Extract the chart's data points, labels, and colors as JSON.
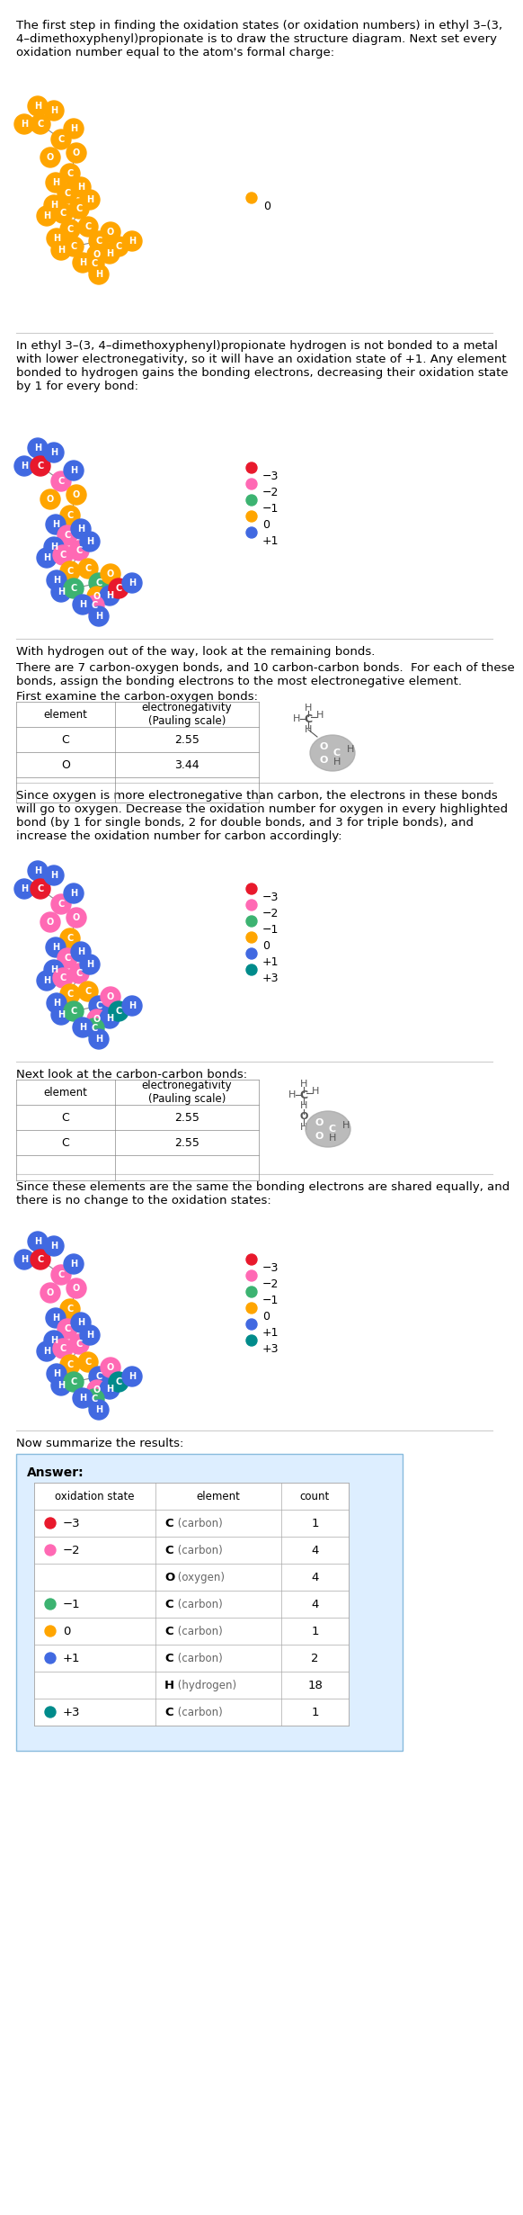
{
  "bg_color": "#ffffff",
  "text_color": "#000000",
  "orange": "#FFA500",
  "red": "#E8192C",
  "pink": "#FF69B4",
  "green": "#3CB371",
  "blue": "#4169E1",
  "teal": "#008B8B",
  "gray": "#888888",
  "section1_text": "The first step in finding the oxidation states (or oxidation numbers) in ethyl 3–(3,\n4–dimethoxyphenyl)propionate is to draw the structure diagram. Next set every\noxidation number equal to the atom's formal charge:",
  "section2_text": "In ethyl 3–(3, 4–dimethoxyphenyl)propionate hydrogen is not bonded to a metal\nwith lower electronegativity, so it will have an oxidation state of +1. Any element\nbonded to hydrogen gains the bonding electrons, decreasing their oxidation state\nby 1 for every bond:",
  "section3_text1": "With hydrogen out of the way, look at the remaining bonds.",
  "section3_text2": "There are 7 carbon-oxygen bonds, and 10 carbon-carbon bonds.  For each of these\nbonds, assign the bonding electrons to the most electronegative element.",
  "section3_text3": "First examine the carbon-oxygen bonds:",
  "section4_text1": "Since oxygen is more electronegative than carbon, the electrons in these bonds\nwill go to oxygen. Decrease the oxidation number for oxygen in every highlighted\nbond (by 1 for single bonds, 2 for double bonds, and 3 for triple bonds), and\nincrease the oxidation number for carbon accordingly:",
  "section5_text1": "Next look at the carbon-carbon bonds:",
  "section6_text1": "Since these elements are the same the bonding electrons are shared equally, and\nthere is no change to the oxidation states:",
  "section7_text1": "Now summarize the results:",
  "table_co_header": [
    "element",
    "electronegativity\n(Pauling scale)"
  ],
  "table_co_rows": [
    [
      "C",
      "2.55"
    ],
    [
      "O",
      "3.44"
    ]
  ],
  "table_cc_header": [
    "element",
    "electronegativity\n(Pauling scale)"
  ],
  "table_cc_rows": [
    [
      "C",
      "2.55"
    ],
    [
      "C",
      "2.55"
    ]
  ],
  "answer_table": {
    "rows": [
      {
        "ox": "−3",
        "dot_color": "#E8192C",
        "element": "C",
        "element_name": "carbon",
        "count": "1"
      },
      {
        "ox": "−2",
        "dot_color": "#FF69B4",
        "element": "C",
        "element_name": "carbon",
        "count": "4"
      },
      {
        "ox": "",
        "dot_color": null,
        "element": "O",
        "element_name": "oxygen",
        "count": "4"
      },
      {
        "ox": "−1",
        "dot_color": "#3CB371",
        "element": "C",
        "element_name": "carbon",
        "count": "4"
      },
      {
        "ox": "0",
        "dot_color": "#FFA500",
        "element": "C",
        "element_name": "carbon",
        "count": "1"
      },
      {
        "ox": "+1",
        "dot_color": "#4169E1",
        "element": "C",
        "element_name": "carbon",
        "count": "2"
      },
      {
        "ox": "",
        "dot_color": null,
        "element": "H",
        "element_name": "hydrogen",
        "count": "18"
      },
      {
        "ox": "+3",
        "dot_color": "#008B8B",
        "element": "C",
        "element_name": "carbon",
        "count": "1"
      }
    ]
  }
}
